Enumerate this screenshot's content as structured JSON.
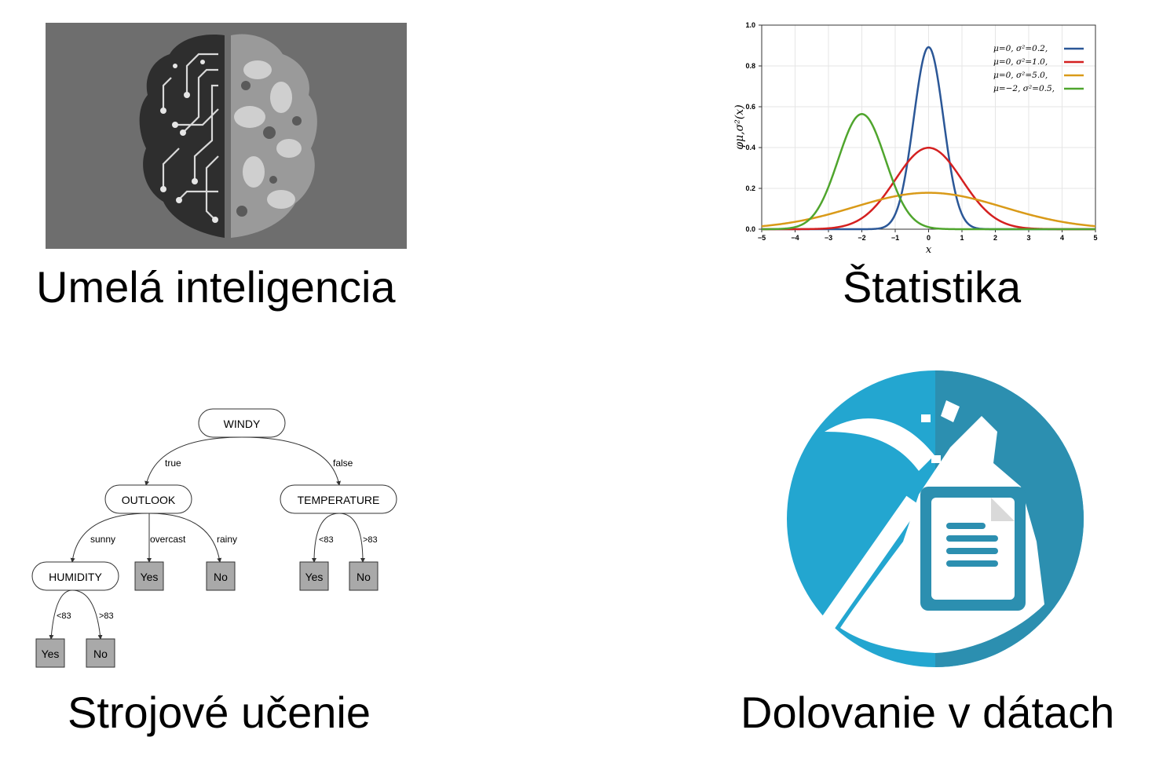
{
  "captions": {
    "ai": "Umelá inteligencia",
    "stats": "Štatistika",
    "ml": "Strojové učenie",
    "dm": "Dolovanie v dátach"
  },
  "chart_data": {
    "type": "line",
    "title": "",
    "xlabel": "x",
    "ylabel": "φμ,σ²(x)",
    "xlim": [
      -5,
      5
    ],
    "ylim": [
      0,
      1.0
    ],
    "xticks": [
      "−5",
      "−4",
      "−3",
      "−2",
      "−1",
      "0",
      "1",
      "2",
      "3",
      "4",
      "5"
    ],
    "yticks": [
      "0.0",
      "0.2",
      "0.4",
      "0.6",
      "0.8",
      "1.0"
    ],
    "grid": true,
    "legend_position": "top-right",
    "series": [
      {
        "name": "μ=0,  σ²=0.2,",
        "mu": 0,
        "var": 0.2,
        "color": "#2b5797"
      },
      {
        "name": "μ=0,  σ²=1.0,",
        "mu": 0,
        "var": 1.0,
        "color": "#d42020"
      },
      {
        "name": "μ=0,  σ²=5.0,",
        "mu": 0,
        "var": 5.0,
        "color": "#d99a18"
      },
      {
        "name": "μ=−2, σ²=0.5,",
        "mu": -2,
        "var": 0.5,
        "color": "#4fa52d"
      }
    ]
  },
  "tree": {
    "root": "WINDY",
    "edge_true": "true",
    "edge_false": "false",
    "outlook": "OUTLOOK",
    "temperature": "TEMPERATURE",
    "humidity": "HUMIDITY",
    "edge_sunny": "sunny",
    "edge_overcast": "overcast",
    "edge_rainy": "rainy",
    "edge_lt83": "<83",
    "edge_gt83": ">83",
    "yes": "Yes",
    "no": "No"
  },
  "colors": {
    "ai_bg": "#6e6e6e",
    "dm_blue": "#23a6d0",
    "dm_dark": "#2c8fb0"
  }
}
